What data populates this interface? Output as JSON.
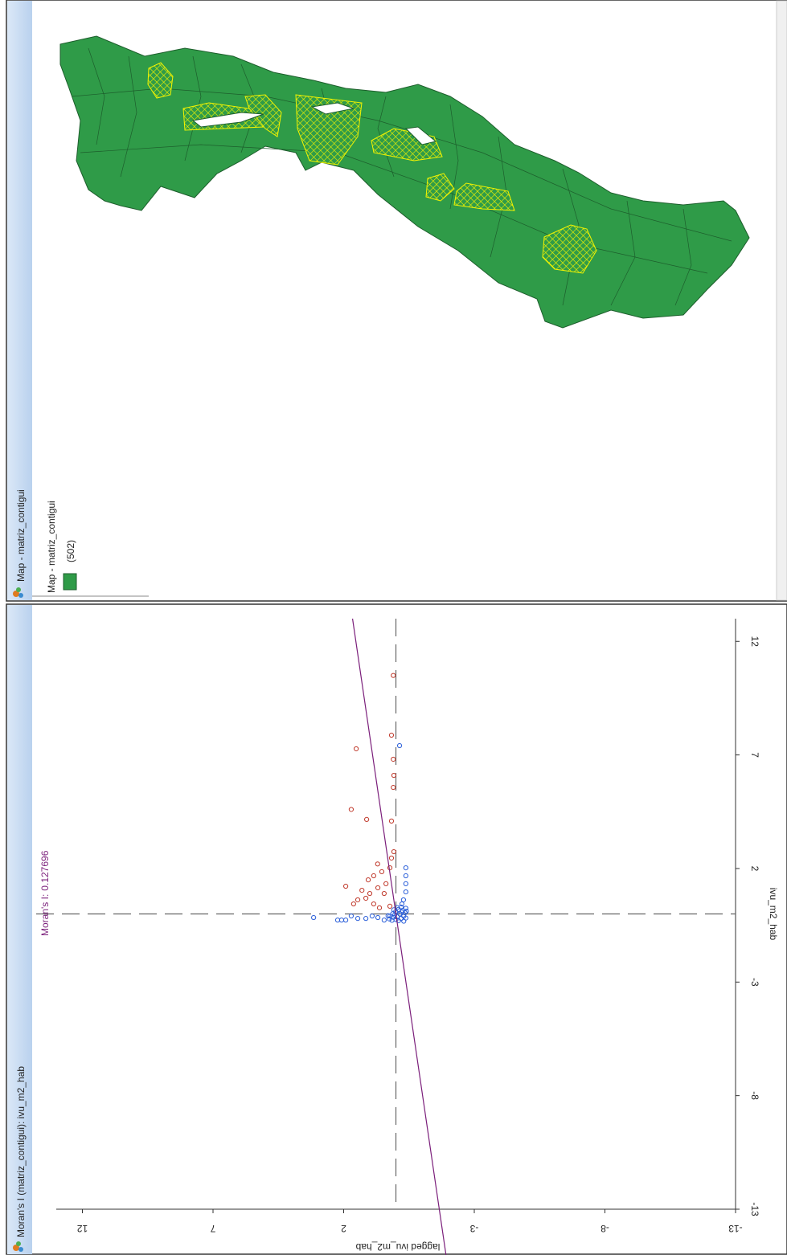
{
  "windows": [
    {
      "title": "Map - matriz_contigui",
      "legend": {
        "title": "Map - matriz_contigui",
        "count": "(502)",
        "color": "#2f9b48"
      }
    },
    {
      "title": "Moran's I (matriz_contigui): ivu_m2_hab"
    }
  ],
  "chart_data": {
    "type": "scatter",
    "annotation": {
      "label": "Moran's I:",
      "value": 0.127696
    },
    "xlabel": "ivu_m2_hab",
    "ylabel": "lagged ivu_m2_hab",
    "xlim": [
      -13,
      13
    ],
    "ylim": [
      -13,
      13
    ],
    "xticks": [
      -13,
      -8,
      -3,
      2,
      7,
      12
    ],
    "yticks": [
      -13,
      -8,
      -3,
      2,
      7,
      12
    ],
    "reference_lines": {
      "x": 0,
      "y": 0
    },
    "line_color": "#7b1f7b",
    "series": [
      {
        "color": "#c0392b",
        "x": [
          10.5,
          7.87,
          7.27,
          6.81,
          6.1,
          5.57,
          4.6,
          4.16,
          4.09,
          2.46,
          1.22,
          0.69,
          1.68,
          1.86,
          1.15,
          1.33,
          0.44,
          0.44,
          0.62,
          0.9,
          0.9,
          2.03,
          0.34,
          0.27,
          2.74,
          2.2,
          1.5,
          1.04
        ],
        "values": [
          0.1,
          0.17,
          1.52,
          0.1,
          0.08,
          0.1,
          1.71,
          1.12,
          0.17,
          0.17,
          1.92,
          1.15,
          0.85,
          0.54,
          0.69,
          0.38,
          0.85,
          1.62,
          1.46,
          1.0,
          0.45,
          0.23,
          0.23,
          0.63,
          0.08,
          0.7,
          1.06,
          1.3
        ]
      },
      {
        "color": "#2b5fd9",
        "x": [
          7.41,
          -0.16,
          -0.27,
          -0.27,
          -0.27,
          -0.09,
          -0.2,
          -0.2,
          -0.09,
          -0.16,
          -0.27,
          -0.09,
          2.03,
          1.68,
          1.33,
          0.97,
          0.62,
          0.44,
          -0.3,
          -0.25,
          -0.2,
          -0.15,
          -0.1,
          -0.05,
          0,
          0.05,
          0.1,
          0.15,
          0.2,
          0.25,
          0.3,
          -0.32,
          -0.28,
          -0.18,
          -0.12,
          0.01,
          0.08,
          0.18,
          0.28,
          -0.22,
          -0.08,
          0.12
        ],
        "values": [
          -0.14,
          3.15,
          2.23,
          2.08,
          1.92,
          1.71,
          1.46,
          1.15,
          0.91,
          0.69,
          0.45,
          0.23,
          -0.38,
          -0.38,
          -0.38,
          -0.38,
          -0.29,
          -0.23,
          -0.1,
          0,
          -0.2,
          0.1,
          -0.3,
          0.05,
          -0.15,
          -0.35,
          0.01,
          -0.25,
          -0.1,
          -0.38,
          -0.2,
          -0.3,
          0.15,
          -0.38,
          -0.05,
          0.12,
          -0.22,
          0.08,
          -0.05,
          0.25,
          0.3,
          -0.4
        ]
      }
    ]
  }
}
